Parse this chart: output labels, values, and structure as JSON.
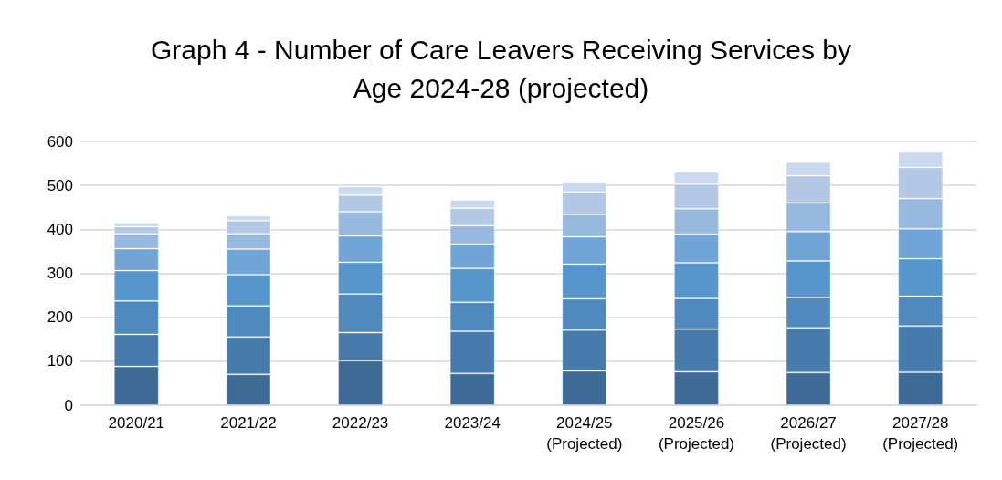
{
  "chart_data": {
    "type": "bar",
    "stacked": true,
    "title": "Graph 4 - Number of Care Leavers Receiving Services by\nAge 2024-28 (projected)",
    "categories": [
      "2020/21",
      "2021/22",
      "2022/23",
      "2023/24",
      "2024/25\n(Projected)",
      "2025/26\n(Projected)",
      "2026/27\n(Projected)",
      "2027/28\n(Projected)"
    ],
    "series": [
      {
        "color": "#3e6b96",
        "values": [
          88,
          70,
          101,
          72,
          78,
          76,
          74,
          75
        ]
      },
      {
        "color": "#467bab",
        "values": [
          73,
          85,
          64,
          96,
          93,
          97,
          102,
          105
        ]
      },
      {
        "color": "#4f89bd",
        "values": [
          76,
          71,
          88,
          66,
          71,
          70,
          69,
          68
        ]
      },
      {
        "color": "#5796cc",
        "values": [
          69,
          71,
          72,
          77,
          79,
          81,
          83,
          85
        ]
      },
      {
        "color": "#71a5d8",
        "values": [
          50,
          58,
          60,
          55,
          62,
          65,
          67,
          68
        ]
      },
      {
        "color": "#97b8df",
        "values": [
          34,
          35,
          55,
          42,
          51,
          58,
          65,
          69
        ]
      },
      {
        "color": "#b3c8e5",
        "values": [
          16,
          30,
          38,
          40,
          51,
          56,
          62,
          71
        ]
      },
      {
        "color": "#cad9ef",
        "values": [
          9,
          11,
          19,
          19,
          23,
          28,
          31,
          35
        ]
      }
    ],
    "ylim": [
      0,
      600
    ],
    "yticks": [
      0,
      100,
      200,
      300,
      400,
      500,
      600
    ],
    "grid": "y"
  }
}
